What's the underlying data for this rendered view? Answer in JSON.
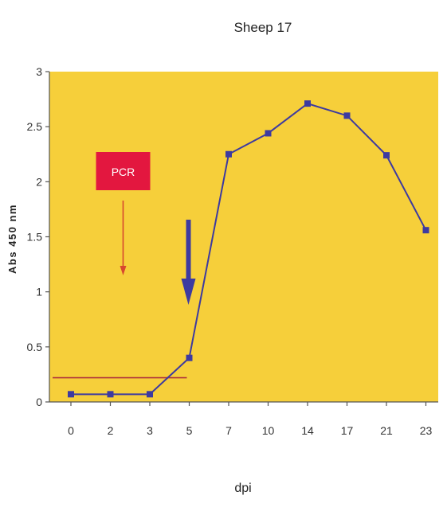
{
  "chart_data": {
    "type": "line",
    "title": "Sheep 17",
    "xlabel": "dpi",
    "ylabel": "Abs 450 nm",
    "categories": [
      "0",
      "2",
      "3",
      "5",
      "7",
      "10",
      "14",
      "17",
      "21",
      "23"
    ],
    "series": [
      {
        "values": [
          0.07,
          0.07,
          0.07,
          0.4,
          2.25,
          2.44,
          2.71,
          2.6,
          2.24,
          1.56
        ],
        "color": "#3d3aa0",
        "marker": "square"
      }
    ],
    "ylim": [
      0,
      3
    ],
    "yticks": [
      0,
      0.5,
      1,
      1.5,
      2,
      2.5,
      3
    ],
    "ytick_labels": [
      "0",
      "0.5",
      "1",
      "1.5",
      "2",
      "2.5",
      "3"
    ],
    "grid": false,
    "plot_background": "#f6cf3a",
    "cutoff_line": {
      "value": 0.22,
      "x_range": [
        "0",
        "5"
      ],
      "color": "#b0343a"
    },
    "annotations": [
      {
        "text": "PCR",
        "box_color": "#e3173f",
        "text_color": "#ffffff",
        "arrow_color": "#d8482f",
        "points_to_x": "2"
      },
      {
        "text": "",
        "arrow_color": "#3d3aa0",
        "points_to_x": "5"
      }
    ]
  }
}
